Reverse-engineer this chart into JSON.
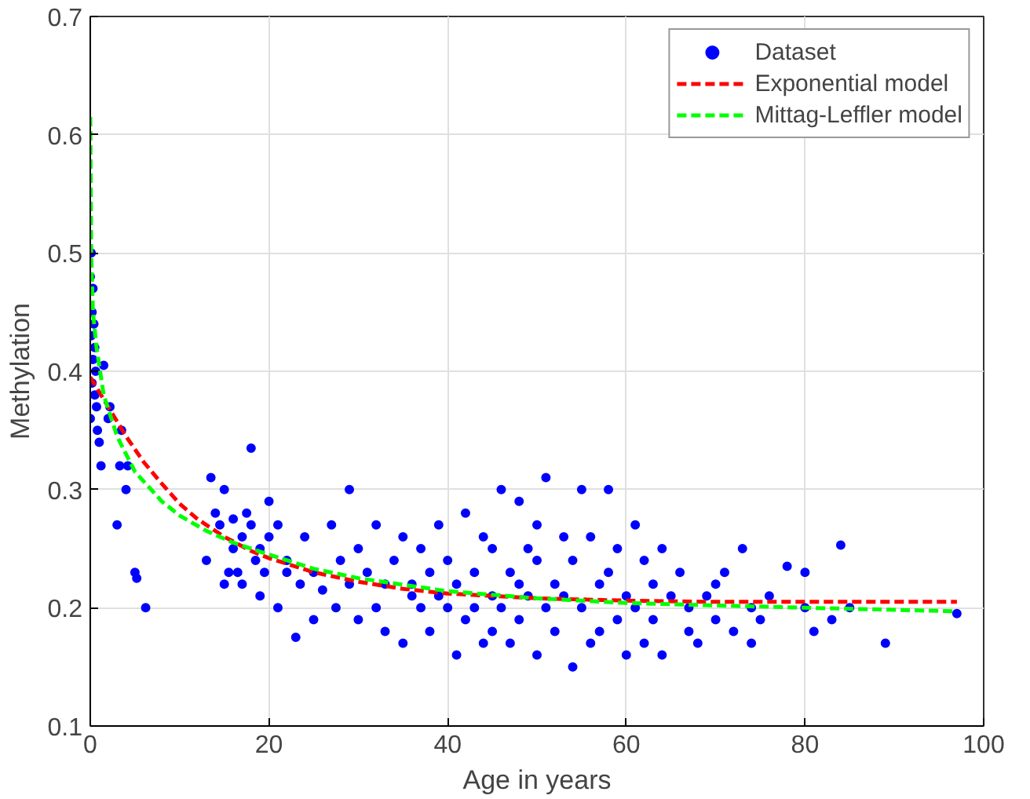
{
  "chart_data": {
    "type": "scatter",
    "xlabel": "Age in years",
    "ylabel": "Methylation",
    "xlim": [
      0,
      100
    ],
    "ylim": [
      0.1,
      0.7
    ],
    "xticks": [
      0,
      20,
      40,
      60,
      80,
      100
    ],
    "yticks": [
      0.1,
      0.2,
      0.3,
      0.4,
      0.5,
      0.6,
      0.7
    ],
    "grid": true,
    "legend": "top right",
    "series": [
      {
        "name": "Dataset",
        "color": "#0000ff",
        "marker": "circle",
        "x": [
          0,
          0,
          0.1,
          0.1,
          0.2,
          0.2,
          0.3,
          0.3,
          0.4,
          0.5,
          0.5,
          0.6,
          0.7,
          0.8,
          1.0,
          1.2,
          1.5,
          2.0,
          2.2,
          3.0,
          3.3,
          3.5,
          4.0,
          4.2,
          5.0,
          5.2,
          6.2,
          13,
          13.5,
          14,
          14.5,
          15,
          15,
          15.5,
          16,
          16,
          16.5,
          17,
          17,
          17.5,
          18,
          18,
          18.5,
          19,
          19,
          19.5,
          20,
          20,
          21,
          21,
          22,
          22,
          23,
          23.5,
          24,
          25,
          25,
          26,
          27,
          27.5,
          28,
          29,
          29,
          30,
          30,
          31,
          32,
          32,
          33,
          33,
          34,
          35,
          35,
          36,
          36,
          37,
          37,
          38,
          38,
          39,
          39,
          40,
          40,
          41,
          41,
          42,
          42,
          43,
          43,
          44,
          44,
          45,
          45,
          45,
          46,
          46,
          47,
          47,
          48,
          48,
          48,
          49,
          49,
          50,
          50,
          50,
          51,
          51,
          52,
          52,
          53,
          53,
          54,
          54,
          55,
          55,
          56,
          56,
          57,
          57,
          58,
          58,
          59,
          59,
          60,
          60,
          61,
          61,
          62,
          62,
          63,
          63,
          64,
          64,
          65,
          66,
          67,
          67,
          68,
          69,
          70,
          70,
          71,
          72,
          73,
          74,
          74,
          75,
          76,
          78,
          80,
          80,
          81,
          83,
          84,
          85,
          89,
          97
        ],
        "values": [
          0.48,
          0.36,
          0.5,
          0.43,
          0.45,
          0.39,
          0.47,
          0.41,
          0.44,
          0.42,
          0.38,
          0.4,
          0.37,
          0.35,
          0.34,
          0.32,
          0.405,
          0.36,
          0.37,
          0.27,
          0.32,
          0.35,
          0.3,
          0.32,
          0.23,
          0.225,
          0.2,
          0.24,
          0.31,
          0.28,
          0.27,
          0.22,
          0.3,
          0.23,
          0.25,
          0.275,
          0.23,
          0.26,
          0.22,
          0.28,
          0.335,
          0.27,
          0.24,
          0.25,
          0.21,
          0.23,
          0.26,
          0.29,
          0.27,
          0.2,
          0.23,
          0.24,
          0.175,
          0.22,
          0.26,
          0.19,
          0.23,
          0.215,
          0.27,
          0.2,
          0.24,
          0.22,
          0.3,
          0.19,
          0.25,
          0.23,
          0.2,
          0.27,
          0.22,
          0.18,
          0.24,
          0.17,
          0.26,
          0.21,
          0.22,
          0.2,
          0.25,
          0.23,
          0.18,
          0.21,
          0.27,
          0.2,
          0.24,
          0.16,
          0.22,
          0.19,
          0.28,
          0.23,
          0.2,
          0.17,
          0.26,
          0.21,
          0.18,
          0.25,
          0.3,
          0.2,
          0.17,
          0.23,
          0.29,
          0.22,
          0.19,
          0.25,
          0.21,
          0.16,
          0.27,
          0.24,
          0.2,
          0.31,
          0.22,
          0.18,
          0.26,
          0.21,
          0.15,
          0.24,
          0.3,
          0.2,
          0.17,
          0.26,
          0.22,
          0.18,
          0.3,
          0.23,
          0.19,
          0.25,
          0.21,
          0.16,
          0.27,
          0.2,
          0.24,
          0.17,
          0.22,
          0.19,
          0.25,
          0.16,
          0.21,
          0.23,
          0.2,
          0.18,
          0.17,
          0.21,
          0.22,
          0.19,
          0.23,
          0.18,
          0.25,
          0.2,
          0.17,
          0.19,
          0.21,
          0.235,
          0.23,
          0.2,
          0.18,
          0.19,
          0.253,
          0.2,
          0.17,
          0.195
        ]
      },
      {
        "name": "Exponential model",
        "type": "line",
        "color": "#ff0000",
        "line_style": "dashed",
        "x": [
          0,
          2,
          4,
          6,
          8,
          10,
          12,
          15,
          18,
          20,
          25,
          30,
          35,
          40,
          45,
          50,
          60,
          70,
          80,
          97
        ],
        "values": [
          0.395,
          0.37,
          0.345,
          0.323,
          0.305,
          0.288,
          0.275,
          0.26,
          0.248,
          0.242,
          0.23,
          0.222,
          0.216,
          0.212,
          0.21,
          0.208,
          0.206,
          0.205,
          0.205,
          0.205
        ]
      },
      {
        "name": "Mittag-Leffler model",
        "type": "line",
        "color": "#00ff00",
        "line_style": "dashed",
        "x": [
          0,
          0.1,
          0.3,
          0.7,
          1.5,
          3,
          5,
          8,
          10,
          13,
          16,
          20,
          25,
          30,
          40,
          50,
          60,
          70,
          80,
          97
        ],
        "values": [
          0.615,
          0.5,
          0.45,
          0.42,
          0.38,
          0.345,
          0.315,
          0.29,
          0.278,
          0.265,
          0.255,
          0.245,
          0.233,
          0.225,
          0.214,
          0.208,
          0.204,
          0.202,
          0.2,
          0.197
        ]
      }
    ]
  }
}
